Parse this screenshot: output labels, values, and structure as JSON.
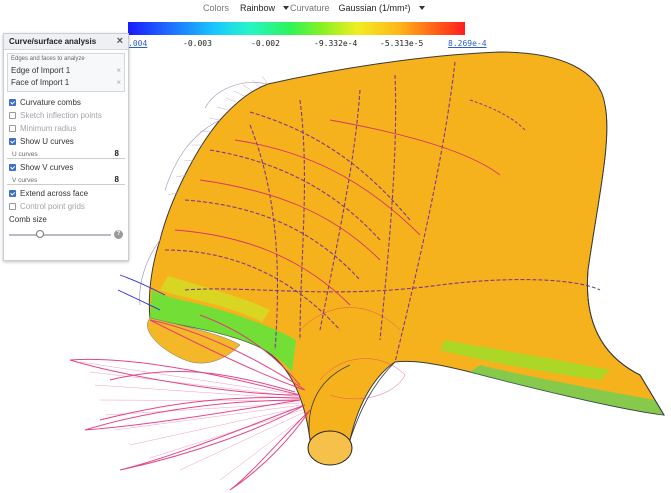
{
  "toolbar": {
    "colors_label": "Colors",
    "colors_value": "Rainbow",
    "curvature_label": "Curvature",
    "curvature_value": "Gaussian (1/mm²)"
  },
  "legend": {
    "labels": [
      ".004",
      "-0.003",
      "-0.002",
      "-9.332e-4",
      "-5.313e-5",
      "8.269e-4"
    ]
  },
  "panel": {
    "title": "Curve/surface analysis",
    "selection_title": "Edges and faces to analyze",
    "selections": [
      "Edge of Import 1",
      "Face of Import 1"
    ],
    "options": {
      "curvature_combs": {
        "label": "Curvature combs",
        "checked": true
      },
      "sketch_inflection": {
        "label": "Sketch inflection points",
        "checked": false
      },
      "minimum_radius": {
        "label": "Minimum radius",
        "checked": false
      },
      "show_u": {
        "label": "Show U curves",
        "checked": true
      },
      "show_v": {
        "label": "Show V curves",
        "checked": true
      },
      "extend_face": {
        "label": "Extend across face",
        "checked": true
      },
      "control_grids": {
        "label": "Control point grids",
        "checked": false
      }
    },
    "u_curves": {
      "label": "U curves",
      "value": "8"
    },
    "v_curves": {
      "label": "V curves",
      "value": "8"
    },
    "comb_size_label": "Comb size",
    "comb_size_value": 0.3,
    "help_glyph": "?"
  },
  "colors": {
    "surface": "#f6b21c",
    "accent": "#3d6fc2"
  }
}
